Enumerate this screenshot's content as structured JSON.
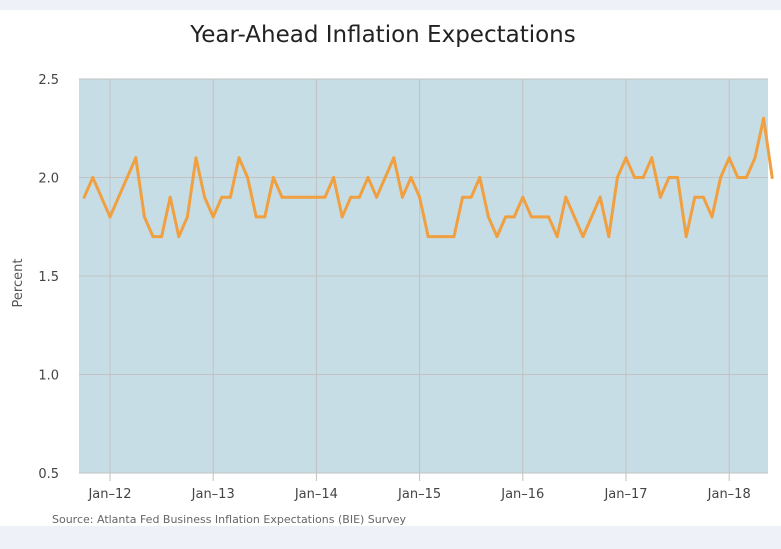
{
  "chart_data": {
    "type": "line",
    "title": "Year-Ahead Inflation Expectations",
    "ylabel": "Percent",
    "xlabel": "",
    "source": "Source: Atlanta Fed Business Inflation Expectations (BIE) Survey",
    "ylim": [
      0.5,
      2.5
    ],
    "yticks": [
      "0.5",
      "1.0",
      "1.5",
      "2.0",
      "2.5"
    ],
    "xtick_labels": [
      "Jan–12",
      "Jan–13",
      "Jan–14",
      "Jan–15",
      "Jan–16",
      "Jan–17",
      "Jan–18"
    ],
    "x_start": "2011-10",
    "grid": true,
    "plot_background": "#c7dde5",
    "line_color": "#f0a040",
    "series": [
      {
        "values": [
          1.9,
          2.0,
          1.9,
          1.8,
          1.9,
          2.0,
          2.1,
          1.8,
          1.7,
          1.7,
          1.9,
          1.7,
          1.8,
          2.1,
          1.9,
          1.8,
          1.9,
          1.9,
          2.1,
          2.0,
          1.8,
          1.8,
          2.0,
          1.9,
          1.9,
          1.9,
          1.9,
          1.9,
          1.9,
          2.0,
          1.8,
          1.9,
          1.9,
          2.0,
          1.9,
          2.0,
          2.1,
          1.9,
          2.0,
          1.9,
          1.7,
          1.7,
          1.7,
          1.7,
          1.9,
          1.9,
          2.0,
          1.8,
          1.7,
          1.8,
          1.8,
          1.9,
          1.8,
          1.8,
          1.8,
          1.7,
          1.9,
          1.8,
          1.7,
          1.8,
          1.9,
          1.7,
          2.0,
          2.1,
          2.0,
          2.0,
          2.1,
          1.9,
          2.0,
          2.0,
          1.7,
          1.9,
          1.9,
          1.8,
          2.0,
          2.1,
          2.0,
          2.0,
          2.1,
          2.3,
          2.0
        ]
      }
    ]
  }
}
